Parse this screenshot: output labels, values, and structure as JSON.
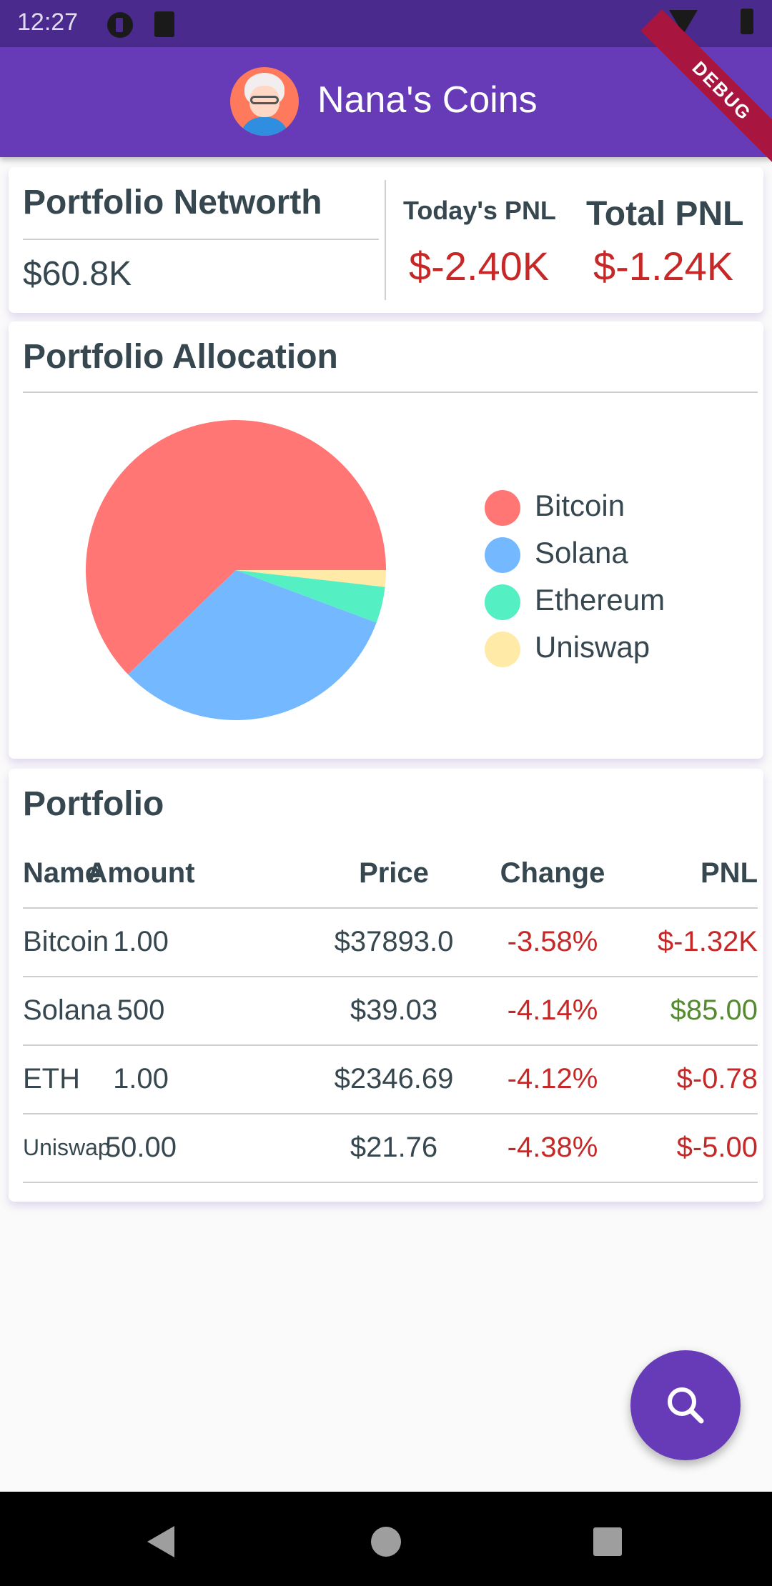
{
  "status_bar": {
    "time": "12:27"
  },
  "app_bar": {
    "title": "Nana's Coins",
    "debug_label": "DEBUG"
  },
  "networth": {
    "title": "Portfolio Networth",
    "value": "$60.8K",
    "today_pnl_label": "Today's PNL",
    "today_pnl_value": "$-2.40K",
    "total_pnl_label": "Total PNL",
    "total_pnl_value": "$-1.24K"
  },
  "allocation": {
    "title": "Portfolio Allocation",
    "legend": [
      {
        "label": "Bitcoin",
        "color": "#ff7675"
      },
      {
        "label": "Solana",
        "color": "#74b9ff"
      },
      {
        "label": "Ethereum",
        "color": "#55efc4"
      },
      {
        "label": "Uniswap",
        "color": "#ffeaa7"
      }
    ]
  },
  "chart_data": {
    "type": "pie",
    "categories": [
      "Bitcoin",
      "Solana",
      "Ethereum",
      "Uniswap"
    ],
    "values": [
      62.3,
      32.1,
      3.9,
      1.8
    ],
    "colors": [
      "#ff7675",
      "#74b9ff",
      "#55efc4",
      "#ffeaa7"
    ],
    "legend": "right"
  },
  "portfolio": {
    "title": "Portfolio",
    "columns": [
      "Name",
      "Amount",
      "Price",
      "Change",
      "PNL"
    ],
    "rows": [
      {
        "name": "Bitcoin",
        "amount": "1.00",
        "price": "$37893.0",
        "change": "-3.58%",
        "pnl": "$-1.32K"
      },
      {
        "name": "Solana",
        "amount": "500",
        "price": "$39.03",
        "change": "-4.14%",
        "pnl": "$85.00"
      },
      {
        "name": "ETH",
        "amount": "1.00",
        "price": "$2346.69",
        "change": "-4.12%",
        "pnl": "$-0.78"
      },
      {
        "name": "Uniswap",
        "amount": "50.00",
        "price": "$21.76",
        "change": "-4.38%",
        "pnl": "$-5.00"
      }
    ]
  },
  "fab": {
    "icon": "search-icon"
  }
}
